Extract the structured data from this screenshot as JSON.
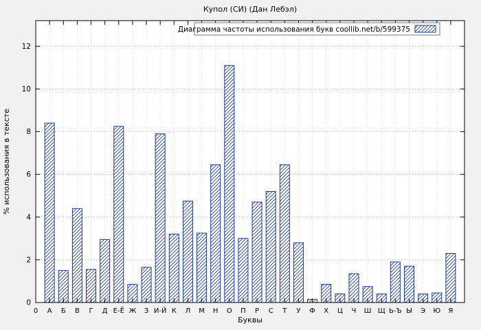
{
  "figure": {
    "background": "#f1f1f1"
  },
  "chart_data": {
    "type": "bar",
    "title": "Купол (СИ) (Дан Лебэл)",
    "xlabel": "Буквы",
    "ylabel": "% использования в тексте",
    "legend": "Диаграмма частоты использования букв coollib.net/b/599375",
    "legend_position": "top-right-inside",
    "grid": true,
    "ylim": [
      0,
      13.2
    ],
    "yticks": [
      0,
      2,
      4,
      6,
      8,
      10,
      12
    ],
    "origin_tick_label": "0",
    "categories": [
      "А",
      "Б",
      "В",
      "Г",
      "Д",
      "Е-Ё",
      "Ж",
      "З",
      "И-Й",
      "К",
      "Л",
      "М",
      "Н",
      "О",
      "П",
      "Р",
      "С",
      "Т",
      "У",
      "Ф",
      "Х",
      "Ц",
      "Ч",
      "Ш",
      "Щ",
      "Ь-Ъ",
      "Ы",
      "Э",
      "Ю",
      "Я"
    ],
    "values": [
      8.4,
      1.5,
      4.4,
      1.55,
      2.95,
      8.25,
      0.85,
      1.65,
      7.9,
      3.2,
      4.75,
      3.25,
      6.45,
      11.1,
      3.0,
      4.7,
      5.2,
      6.45,
      2.8,
      0.15,
      0.85,
      0.4,
      1.35,
      0.75,
      0.4,
      1.9,
      1.7,
      0.4,
      0.45,
      2.3
    ],
    "bar_style": "hatched-diagonal",
    "bar_color": "#1e3c8c",
    "plot_background": "#ffffff",
    "background": "#f1f1f1"
  }
}
